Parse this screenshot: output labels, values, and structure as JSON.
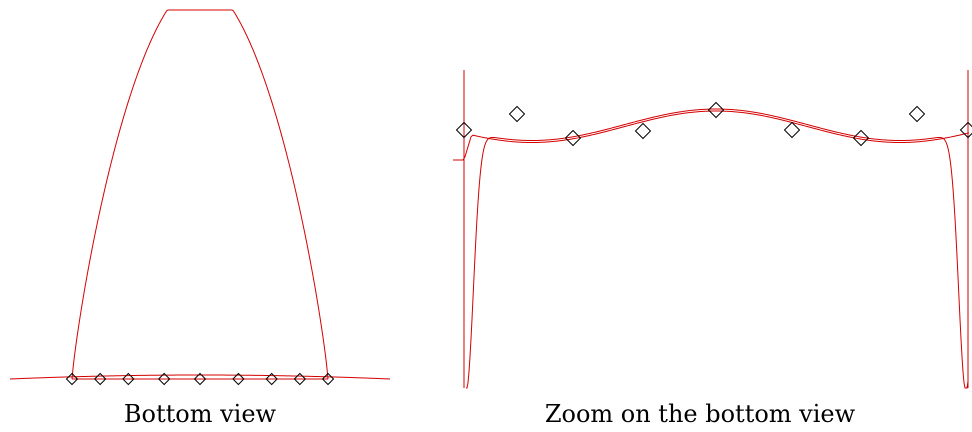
{
  "captions": {
    "left": "Bottom view",
    "right": "Zoom on the bottom view"
  },
  "colors": {
    "curve": "#d40000",
    "marker": "#000000",
    "background": "#ffffff"
  },
  "panels": [
    {
      "id": "bottom-view",
      "nodes_x": [
        -1.0,
        -0.78,
        -0.56,
        -0.28,
        0.0,
        0.3,
        0.56,
        0.78,
        1.0
      ],
      "interpolant_peak": 1.0,
      "reference_shape": "flat-bottom"
    },
    {
      "id": "zoom",
      "nodes_x": [
        -1.0,
        -0.78,
        -0.56,
        -0.28,
        0.0,
        0.3,
        0.56,
        0.78,
        1.0
      ],
      "node_y": [
        0.0,
        0.3,
        -0.4,
        -0.1,
        0.33,
        -0.1,
        -0.4,
        0.3,
        0.0
      ]
    }
  ]
}
